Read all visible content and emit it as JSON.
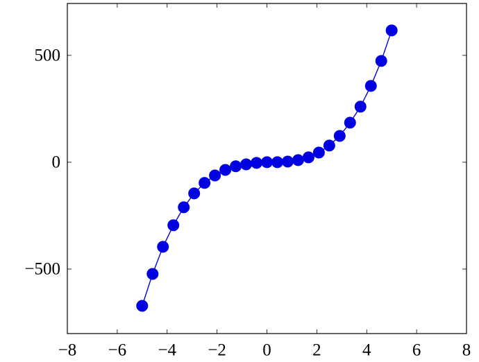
{
  "chart_data": {
    "type": "line",
    "x": [
      -5,
      -4.583,
      -4.167,
      -3.75,
      -3.333,
      -2.917,
      -2.5,
      -2.083,
      -1.667,
      -1.25,
      -0.833,
      -0.417,
      0,
      0.417,
      0.833,
      1.25,
      1.667,
      2.083,
      2.5,
      2.917,
      3.333,
      3.75,
      4.167,
      4.583,
      5
    ],
    "series": [
      {
        "color": "#0000e0",
        "values": [
          -672,
          -523,
          -396,
          -295,
          -211,
          -146,
          -97,
          -62,
          -36,
          -19,
          -10,
          -3,
          0,
          0,
          3,
          10,
          23,
          45,
          78,
          123,
          185,
          260,
          357,
          474,
          617
        ]
      }
    ],
    "xlim": [
      -8,
      8
    ],
    "xticks": [
      {
        "value": -8,
        "label": "−8"
      },
      {
        "value": -6,
        "label": "−6"
      },
      {
        "value": -4,
        "label": "−4"
      },
      {
        "value": -2,
        "label": "−2"
      },
      0,
      2,
      4,
      6,
      8
    ],
    "ylim": [
      -802,
      743
    ],
    "yticks": [
      {
        "value": -500,
        "label": "−500"
      },
      0,
      500
    ]
  }
}
